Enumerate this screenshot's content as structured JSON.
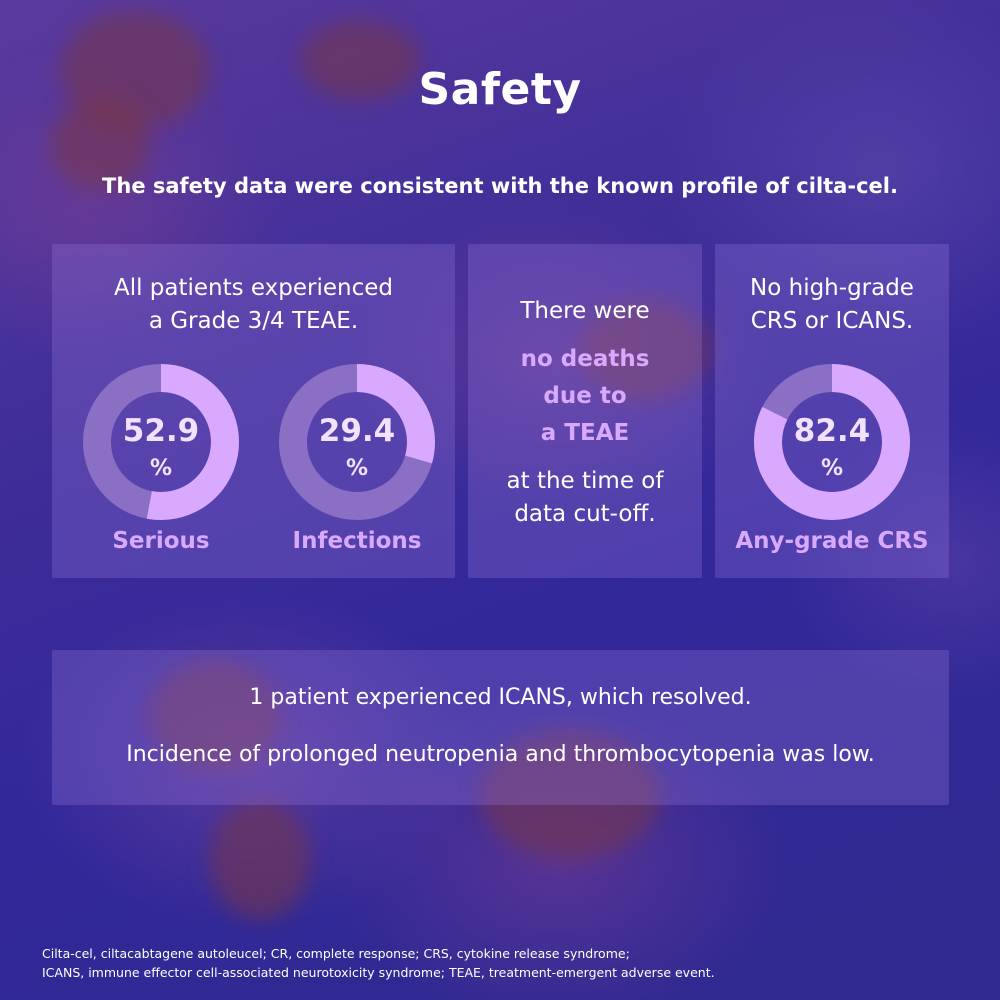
{
  "title": "Safety",
  "subtitle": "The safety data were consistent with the known profile of cilta-cel.",
  "card1": {
    "heading_line1": "All patients experienced",
    "heading_line2": "a Grade 3/4 TEAE.",
    "donuts": [
      {
        "value": "52.9",
        "unit": "%",
        "percent": 52.9,
        "label": "Serious"
      },
      {
        "value": "29.4",
        "unit": "%",
        "percent": 29.4,
        "label": "Infections"
      }
    ]
  },
  "card2": {
    "line1": "There were",
    "highlight_line1": "no deaths",
    "highlight_line2": "due to",
    "highlight_line3": "a TEAE",
    "line2": "at the time of",
    "line3": "data cut-off."
  },
  "card3": {
    "heading_line1": "No high-grade",
    "heading_line2": "CRS or ICANS.",
    "donut": {
      "value": "82.4",
      "unit": "%",
      "percent": 82.4,
      "label": "Any-grade CRS"
    }
  },
  "bottom": {
    "line1": "1 patient experienced ICANS, which resolved.",
    "line2": "Incidence of prolonged neutropenia and thrombocytopenia was low."
  },
  "footnote": {
    "line1": "Cilta-cel, ciltacabtagene autoleucel; CR, complete response; CRS, cytokine release syndrome;",
    "line2": "ICANS, immune effector cell-associated neurotoxicity syndrome; TEAE, treatment-emergent adverse event."
  },
  "colors": {
    "donut_fill": "#d9a8ff",
    "donut_track": "#8a6fc4",
    "highlight": "#d9a8ff"
  }
}
